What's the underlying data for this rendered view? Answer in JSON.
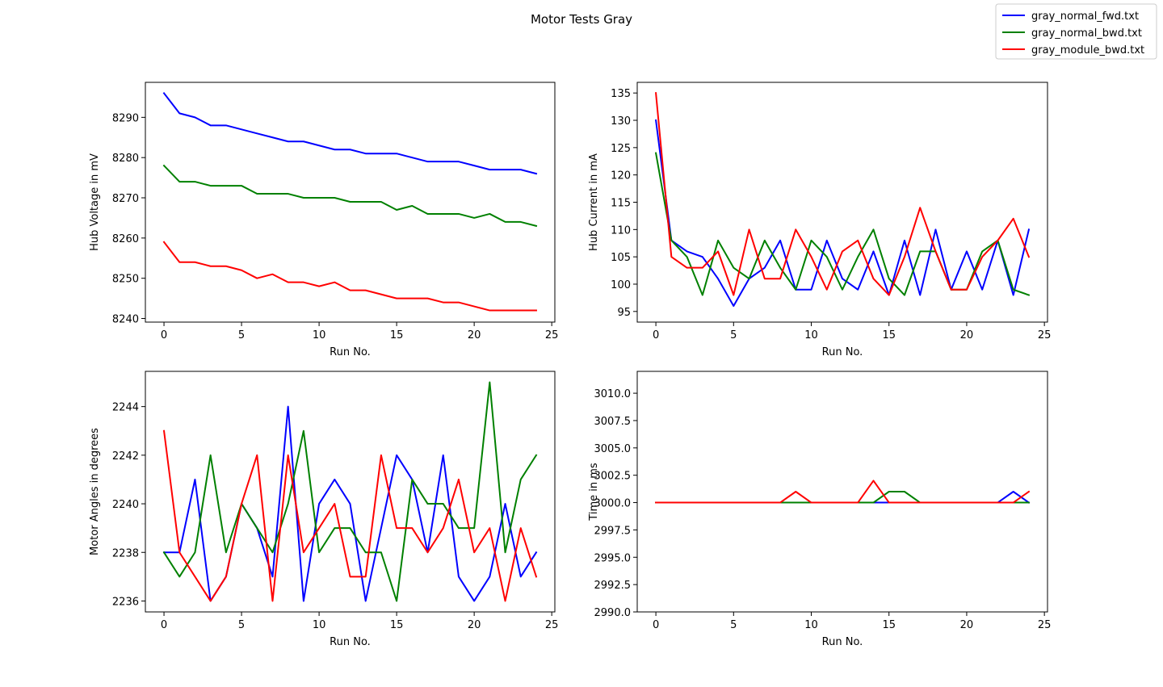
{
  "figure": {
    "title": "Motor Tests Gray",
    "legend": {
      "placement": "top-right",
      "entries": [
        {
          "label": "gray_normal_fwd.txt",
          "color": "#0000ff"
        },
        {
          "label": "gray_normal_bwd.txt",
          "color": "#008000"
        },
        {
          "label": "gray_module_bwd.txt",
          "color": "#ff0000"
        }
      ]
    }
  },
  "chart_data": [
    {
      "type": "line",
      "xlabel": "Run No.",
      "ylabel": "Hub Voltage in mV",
      "xlim": [
        -1.2,
        25.2
      ],
      "ylim": [
        8239.1,
        8298.7
      ],
      "xticks": [
        0,
        5,
        10,
        15,
        20,
        25
      ],
      "yticks": [
        8240,
        8250,
        8260,
        8270,
        8280,
        8290
      ],
      "ytick_labels": [
        "8240",
        "8250",
        "8260",
        "8270",
        "8280",
        "8290"
      ],
      "grid": false,
      "x": [
        0,
        1,
        2,
        3,
        4,
        5,
        6,
        7,
        8,
        9,
        10,
        11,
        12,
        13,
        14,
        15,
        16,
        17,
        18,
        19,
        20,
        21,
        22,
        23,
        24
      ],
      "series": [
        {
          "name": "gray_normal_fwd.txt",
          "color": "#0000ff",
          "values": [
            8296,
            8291,
            8290,
            8288,
            8288,
            8287,
            8286,
            8285,
            8284,
            8284,
            8283,
            8282,
            8282,
            8281,
            8281,
            8281,
            8280,
            8279,
            8279,
            8279,
            8278,
            8277,
            8277,
            8277,
            8276
          ]
        },
        {
          "name": "gray_normal_bwd.txt",
          "color": "#008000",
          "values": [
            8278,
            8274,
            8274,
            8273,
            8273,
            8273,
            8271,
            8271,
            8271,
            8270,
            8270,
            8270,
            8269,
            8269,
            8269,
            8267,
            8268,
            8266,
            8266,
            8266,
            8265,
            8266,
            8264,
            8264,
            8263
          ]
        },
        {
          "name": "gray_module_bwd.txt",
          "color": "#ff0000",
          "values": [
            8259,
            8254,
            8254,
            8253,
            8253,
            8252,
            8250,
            8251,
            8249,
            8249,
            8248,
            8249,
            8247,
            8247,
            8246,
            8245,
            8245,
            8245,
            8244,
            8244,
            8243,
            8242,
            8242,
            8242,
            8242
          ]
        }
      ]
    },
    {
      "type": "line",
      "xlabel": "Run No.",
      "ylabel": "Hub Current in mA",
      "xlim": [
        -1.2,
        25.2
      ],
      "ylim": [
        93.05,
        136.95
      ],
      "xticks": [
        0,
        5,
        10,
        15,
        20,
        25
      ],
      "yticks": [
        95,
        100,
        105,
        110,
        115,
        120,
        125,
        130,
        135
      ],
      "ytick_labels": [
        "95",
        "100",
        "105",
        "110",
        "115",
        "120",
        "125",
        "130",
        "135"
      ],
      "grid": false,
      "x": [
        0,
        1,
        2,
        3,
        4,
        5,
        6,
        7,
        8,
        9,
        10,
        11,
        12,
        13,
        14,
        15,
        16,
        17,
        18,
        19,
        20,
        21,
        22,
        23,
        24
      ],
      "series": [
        {
          "name": "gray_normal_fwd.txt",
          "color": "#0000ff",
          "values": [
            130,
            108,
            106,
            105,
            101,
            96,
            101,
            103,
            108,
            99,
            99,
            108,
            101,
            99,
            106,
            98,
            108,
            98,
            110,
            99,
            106,
            99,
            108,
            98,
            110
          ]
        },
        {
          "name": "gray_normal_bwd.txt",
          "color": "#008000",
          "values": [
            124,
            108,
            105,
            98,
            108,
            103,
            101,
            108,
            103,
            99,
            108,
            105,
            99,
            105,
            110,
            101,
            98,
            106,
            106,
            99,
            99,
            106,
            108,
            99,
            98
          ]
        },
        {
          "name": "gray_module_bwd.txt",
          "color": "#ff0000",
          "values": [
            135,
            105,
            103,
            103,
            106,
            98,
            110,
            101,
            101,
            110,
            105,
            99,
            106,
            108,
            101,
            98,
            105,
            114,
            106,
            99,
            99,
            105,
            108,
            112,
            105
          ]
        }
      ]
    },
    {
      "type": "line",
      "xlabel": "Run No.",
      "ylabel": "Motor Angles in degrees",
      "xlim": [
        -1.2,
        25.2
      ],
      "ylim": [
        2235.55,
        2245.45
      ],
      "xticks": [
        0,
        5,
        10,
        15,
        20,
        25
      ],
      "yticks": [
        2236,
        2238,
        2240,
        2242,
        2244
      ],
      "ytick_labels": [
        "2236",
        "2238",
        "2240",
        "2242",
        "2244"
      ],
      "grid": false,
      "x": [
        0,
        1,
        2,
        3,
        4,
        5,
        6,
        7,
        8,
        9,
        10,
        11,
        12,
        13,
        14,
        15,
        16,
        17,
        18,
        19,
        20,
        21,
        22,
        23,
        24
      ],
      "series": [
        {
          "name": "gray_normal_fwd.txt",
          "color": "#0000ff",
          "values": [
            2238,
            2238,
            2241,
            2236,
            2237,
            2240,
            2239,
            2237,
            2244,
            2236,
            2240,
            2241,
            2240,
            2236,
            2239,
            2242,
            2241,
            2238,
            2242,
            2237,
            2236,
            2237,
            2240,
            2237,
            2238
          ]
        },
        {
          "name": "gray_normal_bwd.txt",
          "color": "#008000",
          "values": [
            2238,
            2237,
            2238,
            2242,
            2238,
            2240,
            2239,
            2238,
            2240,
            2243,
            2238,
            2239,
            2239,
            2238,
            2238,
            2236,
            2241,
            2240,
            2240,
            2239,
            2239,
            2245,
            2238,
            2241,
            2242
          ]
        },
        {
          "name": "gray_module_bwd.txt",
          "color": "#ff0000",
          "values": [
            2243,
            2238,
            2237,
            2236,
            2237,
            2240,
            2242,
            2236,
            2242,
            2238,
            2239,
            2240,
            2237,
            2237,
            2242,
            2239,
            2239,
            2238,
            2239,
            2241,
            2238,
            2239,
            2236,
            2239,
            2237
          ]
        }
      ]
    },
    {
      "type": "line",
      "xlabel": "Run No.",
      "ylabel": "Time in ms",
      "xlim": [
        -1.2,
        25.2
      ],
      "ylim": [
        2990.0,
        3012.0
      ],
      "xticks": [
        0,
        5,
        10,
        15,
        20,
        25
      ],
      "yticks": [
        2990,
        2992.5,
        2995,
        2997.5,
        3000,
        3002.5,
        3005,
        3007.5,
        3010
      ],
      "ytick_labels": [
        "2990.0",
        "2992.5",
        "2995.0",
        "2997.5",
        "3000.0",
        "3002.5",
        "3005.0",
        "3007.5",
        "3010.0"
      ],
      "grid": false,
      "x": [
        0,
        1,
        2,
        3,
        4,
        5,
        6,
        7,
        8,
        9,
        10,
        11,
        12,
        13,
        14,
        15,
        16,
        17,
        18,
        19,
        20,
        21,
        22,
        23,
        24
      ],
      "series": [
        {
          "name": "gray_normal_fwd.txt",
          "color": "#0000ff",
          "values": [
            3000,
            3000,
            3000,
            3000,
            3000,
            3000,
            3000,
            3000,
            3000,
            3000,
            3000,
            3000,
            3000,
            3000,
            3000,
            3000,
            3000,
            3000,
            3000,
            3000,
            3000,
            3000,
            3000,
            3001,
            3000
          ]
        },
        {
          "name": "gray_normal_bwd.txt",
          "color": "#008000",
          "values": [
            3000,
            3000,
            3000,
            3000,
            3000,
            3000,
            3000,
            3000,
            3000,
            3000,
            3000,
            3000,
            3000,
            3000,
            3000,
            3001,
            3001,
            3000,
            3000,
            3000,
            3000,
            3000,
            3000,
            3000,
            3000
          ]
        },
        {
          "name": "gray_module_bwd.txt",
          "color": "#ff0000",
          "values": [
            3000,
            3000,
            3000,
            3000,
            3000,
            3000,
            3000,
            3000,
            3000,
            3001,
            3000,
            3000,
            3000,
            3000,
            3002,
            3000,
            3000,
            3000,
            3000,
            3000,
            3000,
            3000,
            3000,
            3000,
            3001
          ]
        }
      ]
    }
  ]
}
